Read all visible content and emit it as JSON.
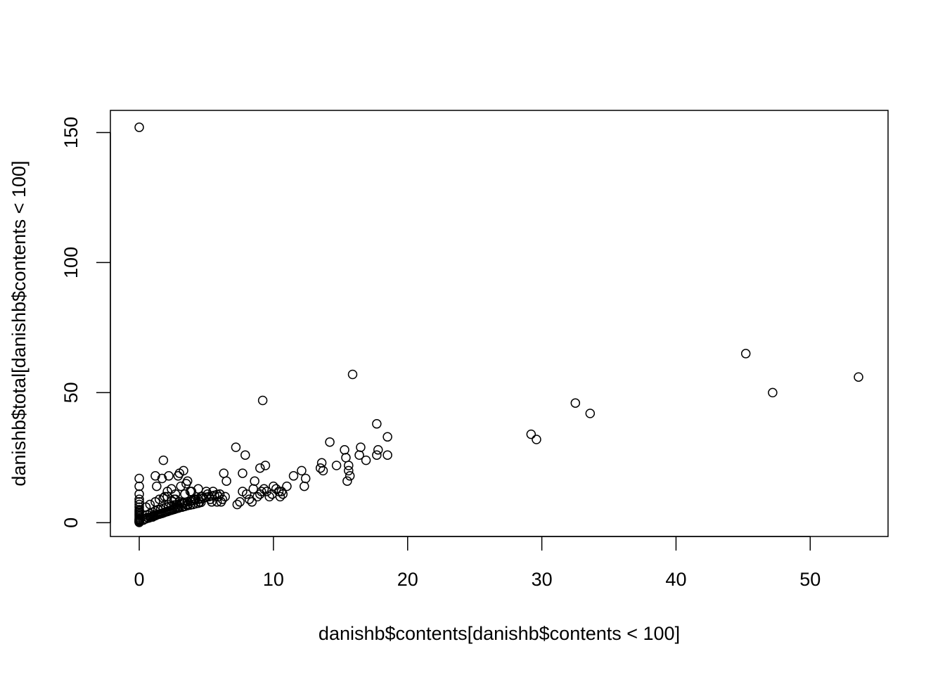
{
  "chart_data": {
    "type": "scatter",
    "title": "",
    "xlabel": "danishb$contents[danishb$contents < 100]",
    "ylabel": "danishb$total[danishb$contents < 100]",
    "xlim": [
      -2.15,
      55.8
    ],
    "ylim": [
      -5.3,
      158.5
    ],
    "xticks": [
      0,
      10,
      20,
      30,
      40,
      50
    ],
    "yticks": [
      0,
      50,
      100,
      150
    ],
    "grid": false,
    "legend": "none",
    "marker": "open-circle",
    "color": "#000000",
    "x": [
      0,
      0,
      0,
      0,
      0,
      0,
      0,
      0,
      0,
      0,
      0,
      0,
      0,
      0,
      0,
      0,
      0,
      0,
      0,
      0,
      0,
      0,
      0,
      0,
      0.3,
      0.4,
      0.5,
      0.6,
      0.7,
      0.8,
      0.9,
      1,
      1,
      1.1,
      1.1,
      1.2,
      1.2,
      1.3,
      1.4,
      1.5,
      1.6,
      1.7,
      1.8,
      1.9,
      2,
      2.1,
      2.2,
      2.3,
      2.4,
      2.5,
      2.6,
      2.7,
      2.8,
      2.9,
      3,
      3.2,
      3.4,
      3.6,
      3.8,
      4,
      4.2,
      4.4,
      4.6,
      0.6,
      0.8,
      1,
      1.2,
      1.4,
      1.6,
      1.8,
      2,
      2.2,
      2.4,
      2.6,
      2.8,
      3,
      3.2,
      3.4,
      3.6,
      3.8,
      4,
      4.2,
      4.4,
      4.6,
      4.8,
      5,
      5.2,
      5.4,
      5.6,
      5.8,
      6,
      0.5,
      0.8,
      1.2,
      1.5,
      1.8,
      2.1,
      2.4,
      2.7,
      3,
      3.3,
      3.6,
      3.9,
      4.2,
      4.5,
      1.2,
      1.3,
      1.9,
      1.7,
      2.2,
      2.4,
      2.7,
      2.9,
      3.1,
      3.4,
      3.6,
      3.9,
      4.1,
      4.4,
      4.7,
      5,
      5.3,
      5.5,
      5.8,
      6,
      6.2,
      6.4,
      1.8,
      2.1,
      2.6,
      3,
      3.3,
      3.5,
      3.8,
      4.6,
      5.1,
      5.4,
      5.9,
      6.1,
      7.3,
      7.5,
      7.7,
      8,
      8.2,
      8.5,
      8.6,
      8.8,
      9,
      9.1,
      9.3,
      9.5,
      9.7,
      9.9,
      10,
      10.2,
      10.4,
      10.5,
      10.7,
      11,
      6.3,
      6.5,
      7.2,
      7.7,
      7.9,
      8.4,
      9,
      9.4,
      10.6,
      11.5,
      12.1,
      12.3,
      12.4,
      13.5,
      13.6,
      13.7,
      14.2,
      14.7,
      15.3,
      15.4,
      15.5,
      15.6,
      15.7,
      15.9,
      16.4,
      16.5,
      16.9,
      17.7,
      17.7,
      17.8,
      18.5,
      18.5,
      9.2,
      15.6,
      29.2,
      29.6,
      32.5,
      33.6,
      45.2,
      47.2,
      53.6
    ],
    "y": [
      152,
      17,
      14,
      11,
      9,
      8,
      7,
      6,
      5,
      4.5,
      4,
      3.5,
      3,
      2.5,
      2,
      1.5,
      1.2,
      1,
      0.8,
      0.6,
      0.4,
      0.3,
      0.2,
      0.1,
      1,
      1.5,
      1.5,
      2,
      1.8,
      2,
      2.2,
      2.5,
      2.2,
      2.6,
      2.8,
      3,
      2.7,
      3,
      3.2,
      3.3,
      3.5,
      3.6,
      3.8,
      4,
      4.2,
      4.3,
      4.5,
      4.7,
      4.8,
      5,
      5.1,
      5.3,
      5.5,
      5.6,
      5.8,
      6,
      6.3,
      6.6,
      6.8,
      7,
      7.3,
      7.5,
      7.8,
      3,
      3.5,
      4,
      4.5,
      5,
      5.2,
      5.5,
      6,
      6.2,
      6.5,
      6.8,
      7,
      7.2,
      7.5,
      7.8,
      8,
      8.2,
      8.5,
      8.8,
      9,
      9.2,
      9.5,
      9.8,
      10,
      10.3,
      10.5,
      10.8,
      11,
      6,
      7,
      8,
      9,
      9.5,
      10,
      8.5,
      9,
      8,
      7.5,
      7,
      8.5,
      9,
      8,
      18,
      14,
      10,
      17,
      18,
      13,
      11,
      18,
      14,
      11,
      16,
      12,
      9,
      13,
      10,
      12,
      9,
      12,
      8,
      11,
      9,
      10,
      24,
      12,
      9,
      19,
      20,
      15,
      12,
      10,
      11,
      8,
      10,
      8,
      7,
      8,
      12,
      11,
      9,
      13,
      16,
      10,
      11,
      12,
      13,
      12,
      10,
      11,
      14,
      13,
      12,
      10,
      11,
      14,
      19,
      16,
      29,
      19,
      26,
      8,
      21,
      22,
      12,
      18,
      20,
      14,
      17,
      21,
      23,
      20,
      31,
      22,
      28,
      25,
      16,
      20,
      18,
      57,
      26,
      29,
      24,
      38,
      26,
      28,
      26,
      33,
      47,
      22,
      34,
      32,
      46,
      42,
      65,
      50,
      56
    ]
  }
}
